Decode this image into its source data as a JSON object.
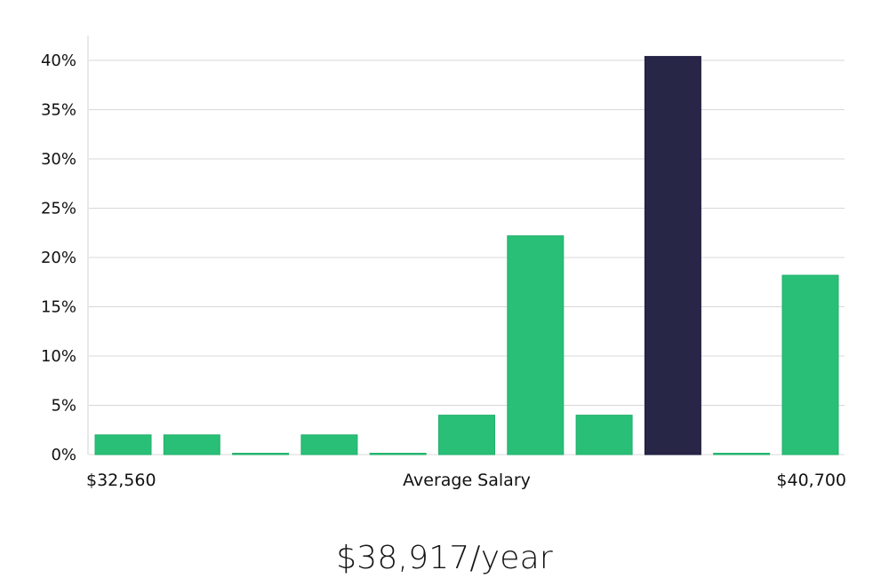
{
  "chart_data": {
    "type": "bar",
    "xlabel": "Average Salary",
    "x_range_labels": [
      "$32,560",
      "$40,700"
    ],
    "ylim": [
      0,
      40
    ],
    "yticks": [
      "0%",
      "5%",
      "10%",
      "15%",
      "20%",
      "25%",
      "30%",
      "35%",
      "40%"
    ],
    "grid": true,
    "values": [
      2,
      2,
      0,
      2,
      0,
      4,
      22.2,
      4,
      40.4,
      0,
      18.2
    ],
    "highlight_index": 8,
    "colors": {
      "bar": "#29bf77",
      "highlight": "#282647",
      "grid": "#d8d8d8",
      "axis": "#d0d0d0"
    }
  },
  "summary": {
    "salary": "$38,917/year"
  }
}
